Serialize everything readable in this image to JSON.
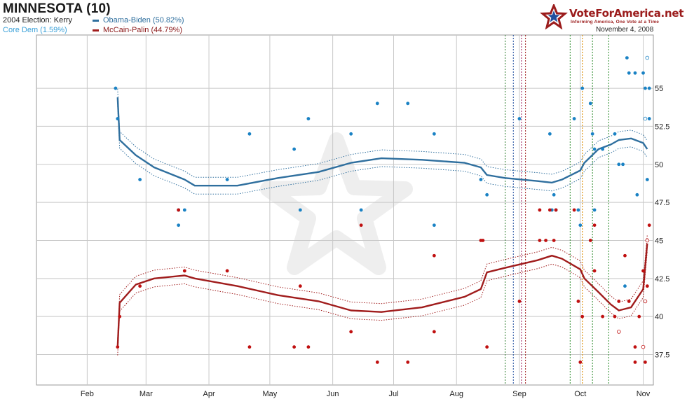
{
  "header": {
    "title": "MINNESOTA (10)",
    "election_2004": "2004 Election: Kerry",
    "core": "Core Dem (1.59%)",
    "date": "November 4, 2008"
  },
  "brand": {
    "name": "VoteForAmerica.net",
    "tagline": "Informing America, One Vote at a Time"
  },
  "colors": {
    "dem": "#2f6f9e",
    "dem_point": "#1a82c4",
    "gop": "#a01c1c",
    "gop_point": "#c01010",
    "grid": "#c8c8c8"
  },
  "chart_data": {
    "type": "line",
    "x_ticks": [
      "Feb",
      "Mar",
      "Apr",
      "May",
      "Jun",
      "Jul",
      "Aug",
      "Sep",
      "Oct",
      "Nov"
    ],
    "ylim": [
      35.5,
      58.5
    ],
    "y_ticks": [
      37.5,
      40,
      42.5,
      45,
      47.5,
      50,
      52.5,
      55
    ],
    "grid": true,
    "legend_position": "top-left",
    "series": [
      {
        "name": "Obama-Biden (50.82%)",
        "color": "#2f6f9e",
        "x": [
          "2008-02-16",
          "2008-02-17",
          "2008-02-25",
          "2008-03-05",
          "2008-03-20",
          "2008-03-25",
          "2008-04-15",
          "2008-05-05",
          "2008-05-25",
          "2008-06-10",
          "2008-06-25",
          "2008-07-15",
          "2008-08-05",
          "2008-08-13",
          "2008-08-16",
          "2008-08-25",
          "2008-09-10",
          "2008-09-17",
          "2008-09-22",
          "2008-10-01",
          "2008-10-03",
          "2008-10-10",
          "2008-10-16",
          "2008-10-20",
          "2008-10-26",
          "2008-11-01",
          "2008-11-03"
        ],
        "values": [
          54.4,
          51.6,
          50.6,
          49.8,
          49.0,
          48.6,
          48.6,
          49.1,
          49.5,
          50.1,
          50.4,
          50.3,
          50.1,
          49.8,
          49.3,
          49.1,
          48.9,
          48.8,
          49.0,
          49.6,
          50.1,
          51.0,
          51.3,
          51.6,
          51.7,
          51.4,
          51.0
        ]
      },
      {
        "name": "McCain-Palin (44.79%)",
        "color": "#a01c1c",
        "x": [
          "2008-02-16",
          "2008-02-17",
          "2008-02-25",
          "2008-03-05",
          "2008-03-20",
          "2008-03-25",
          "2008-04-15",
          "2008-05-05",
          "2008-05-25",
          "2008-06-10",
          "2008-06-25",
          "2008-07-15",
          "2008-08-05",
          "2008-08-13",
          "2008-08-16",
          "2008-08-25",
          "2008-09-10",
          "2008-09-17",
          "2008-09-22",
          "2008-10-01",
          "2008-10-03",
          "2008-10-10",
          "2008-10-16",
          "2008-10-20",
          "2008-10-26",
          "2008-11-01",
          "2008-11-03"
        ],
        "values": [
          38.0,
          40.9,
          42.1,
          42.5,
          42.7,
          42.5,
          42.0,
          41.4,
          41.0,
          40.4,
          40.3,
          40.6,
          41.3,
          41.8,
          42.9,
          43.2,
          43.7,
          44.0,
          43.8,
          43.1,
          42.5,
          41.6,
          40.8,
          40.4,
          40.6,
          41.8,
          44.8
        ]
      }
    ],
    "polls": {
      "dem": [
        [
          "2008-02-15",
          55
        ],
        [
          "2008-02-16",
          53
        ],
        [
          "2008-02-27",
          49
        ],
        [
          "2008-03-17",
          46
        ],
        [
          "2008-03-17",
          47
        ],
        [
          "2008-03-20",
          47
        ],
        [
          "2008-04-10",
          49
        ],
        [
          "2008-04-21",
          52
        ],
        [
          "2008-05-13",
          51
        ],
        [
          "2008-05-16",
          47
        ],
        [
          "2008-05-20",
          53
        ],
        [
          "2008-06-10",
          52
        ],
        [
          "2008-06-15",
          47
        ],
        [
          "2008-06-23",
          54
        ],
        [
          "2008-07-08",
          54
        ],
        [
          "2008-07-21",
          52
        ],
        [
          "2008-07-21",
          46
        ],
        [
          "2008-08-13",
          49
        ],
        [
          "2008-08-16",
          48
        ],
        [
          "2008-09-01",
          53
        ],
        [
          "2008-09-16",
          52
        ],
        [
          "2008-09-17",
          47
        ],
        [
          "2008-09-18",
          48
        ],
        [
          "2008-09-19",
          47
        ],
        [
          "2008-09-28",
          53
        ],
        [
          "2008-09-30",
          47
        ],
        [
          "2008-10-01",
          46
        ],
        [
          "2008-10-02",
          55
        ],
        [
          "2008-10-06",
          54
        ],
        [
          "2008-10-07",
          52
        ],
        [
          "2008-10-08",
          51
        ],
        [
          "2008-10-08",
          47
        ],
        [
          "2008-10-12",
          51
        ],
        [
          "2008-10-18",
          52
        ],
        [
          "2008-10-20",
          50
        ],
        [
          "2008-10-22",
          50
        ],
        [
          "2008-10-23",
          42
        ],
        [
          "2008-10-24",
          57
        ],
        [
          "2008-10-25",
          56
        ],
        [
          "2008-10-28",
          56
        ],
        [
          "2008-10-29",
          48
        ],
        [
          "2008-11-01",
          56
        ],
        [
          "2008-11-02",
          55
        ],
        [
          "2008-11-03",
          49
        ],
        [
          "2008-11-04",
          55
        ],
        [
          "2008-11-04",
          53
        ]
      ],
      "gop": [
        [
          "2008-02-16",
          38
        ],
        [
          "2008-02-17",
          40
        ],
        [
          "2008-02-27",
          42
        ],
        [
          "2008-03-17",
          47
        ],
        [
          "2008-03-20",
          43
        ],
        [
          "2008-04-10",
          43
        ],
        [
          "2008-04-21",
          38
        ],
        [
          "2008-05-13",
          38
        ],
        [
          "2008-05-16",
          42
        ],
        [
          "2008-05-20",
          38
        ],
        [
          "2008-06-10",
          39
        ],
        [
          "2008-06-15",
          46
        ],
        [
          "2008-06-23",
          37
        ],
        [
          "2008-07-08",
          37
        ],
        [
          "2008-07-21",
          44
        ],
        [
          "2008-07-21",
          39
        ],
        [
          "2008-08-13",
          45
        ],
        [
          "2008-08-14",
          45
        ],
        [
          "2008-08-16",
          38
        ],
        [
          "2008-09-01",
          41
        ],
        [
          "2008-09-11",
          47
        ],
        [
          "2008-09-11",
          45
        ],
        [
          "2008-09-14",
          45
        ],
        [
          "2008-09-16",
          47
        ],
        [
          "2008-09-18",
          45
        ],
        [
          "2008-09-19",
          47
        ],
        [
          "2008-09-28",
          47
        ],
        [
          "2008-09-30",
          41
        ],
        [
          "2008-10-01",
          37
        ],
        [
          "2008-10-02",
          40
        ],
        [
          "2008-10-06",
          45
        ],
        [
          "2008-10-08",
          46
        ],
        [
          "2008-10-08",
          43
        ],
        [
          "2008-10-12",
          40
        ],
        [
          "2008-10-18",
          40
        ],
        [
          "2008-10-20",
          41
        ],
        [
          "2008-10-23",
          44
        ],
        [
          "2008-10-25",
          41
        ],
        [
          "2008-10-28",
          37
        ],
        [
          "2008-10-28",
          38
        ],
        [
          "2008-10-30",
          40
        ],
        [
          "2008-11-01",
          43
        ],
        [
          "2008-11-02",
          37
        ],
        [
          "2008-11-03",
          42
        ],
        [
          "2008-11-04",
          46
        ]
      ],
      "gop_open": [
        [
          "2008-10-20",
          39
        ],
        [
          "2008-11-01",
          38
        ],
        [
          "2008-11-02",
          41
        ],
        [
          "2008-11-03",
          45
        ]
      ],
      "dem_open": [
        [
          "2008-11-02",
          53
        ],
        [
          "2008-11-03",
          57
        ]
      ]
    },
    "event_lines": [
      {
        "date": "2008-08-25",
        "color": "#2a7a2a"
      },
      {
        "date": "2008-08-29",
        "color": "#1f4f9f"
      },
      {
        "date": "2008-09-02",
        "color": "#9f1f5f"
      },
      {
        "date": "2008-09-04",
        "color": "#9f1f1f"
      },
      {
        "date": "2008-09-26",
        "color": "#2a8a2a"
      },
      {
        "date": "2008-10-02",
        "color": "#e08020"
      },
      {
        "date": "2008-10-02",
        "color": "#e0a020"
      },
      {
        "date": "2008-10-07",
        "color": "#2a8a2a"
      },
      {
        "date": "2008-10-15",
        "color": "#2a8a2a"
      }
    ]
  }
}
